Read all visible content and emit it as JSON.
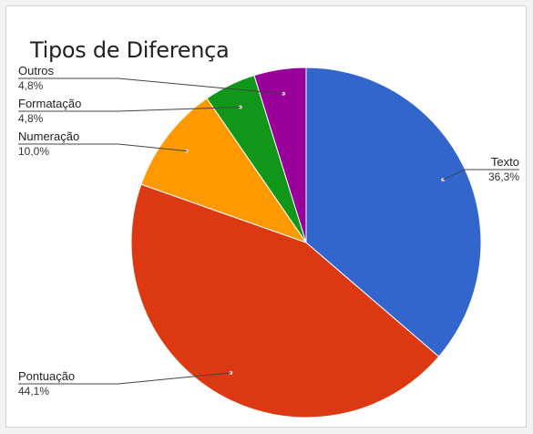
{
  "chart_data": {
    "type": "pie",
    "title": "Tipos de Diferença",
    "slices": [
      {
        "label": "Texto",
        "value": 36.3,
        "display": "36,3%",
        "color": "#3366cc"
      },
      {
        "label": "Pontuação",
        "value": 44.1,
        "display": "44,1%",
        "color": "#dc3912"
      },
      {
        "label": "Numeração",
        "value": 10.0,
        "display": "10,0%",
        "color": "#ff9900"
      },
      {
        "label": "Formatação",
        "value": 4.8,
        "display": "4,8%",
        "color": "#109618"
      },
      {
        "label": "Outros",
        "value": 4.8,
        "display": "4,8%",
        "color": "#990099"
      }
    ],
    "start_angle_deg": 0,
    "direction": "clockwise",
    "legend": "labeled slices"
  }
}
